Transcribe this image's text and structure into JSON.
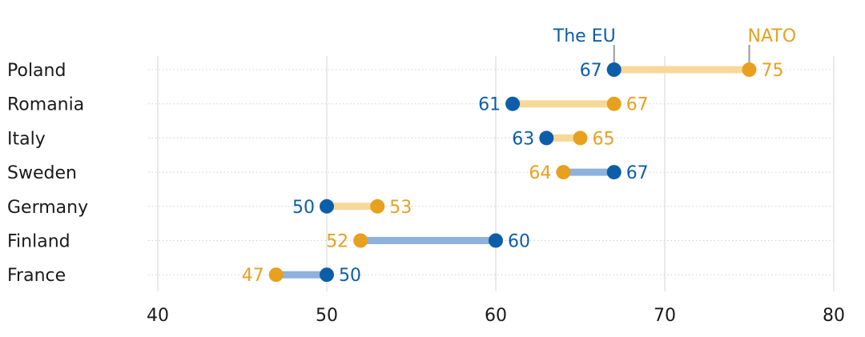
{
  "chart_data": {
    "type": "dumbbell",
    "title": "",
    "xlabel": "",
    "ylabel": "",
    "xlim": [
      40,
      80
    ],
    "xticks": [
      40,
      50,
      60,
      70,
      80
    ],
    "grid": true,
    "legend_placement": "top, next to the Poland row markers",
    "categories": [
      "Poland",
      "Romania",
      "Italy",
      "Sweden",
      "Germany",
      "Finland",
      "France"
    ],
    "series": [
      {
        "name": "The EU",
        "color": "#0d5ea8",
        "values": [
          67,
          61,
          63,
          67,
          50,
          60,
          50
        ]
      },
      {
        "name": "NATO",
        "color": "#e7a11f",
        "values": [
          75,
          67,
          65,
          64,
          53,
          52,
          47
        ]
      }
    ],
    "connector_colors": {
      "nato_higher": "#f7d898",
      "eu_higher": "#8fb2dc"
    }
  }
}
